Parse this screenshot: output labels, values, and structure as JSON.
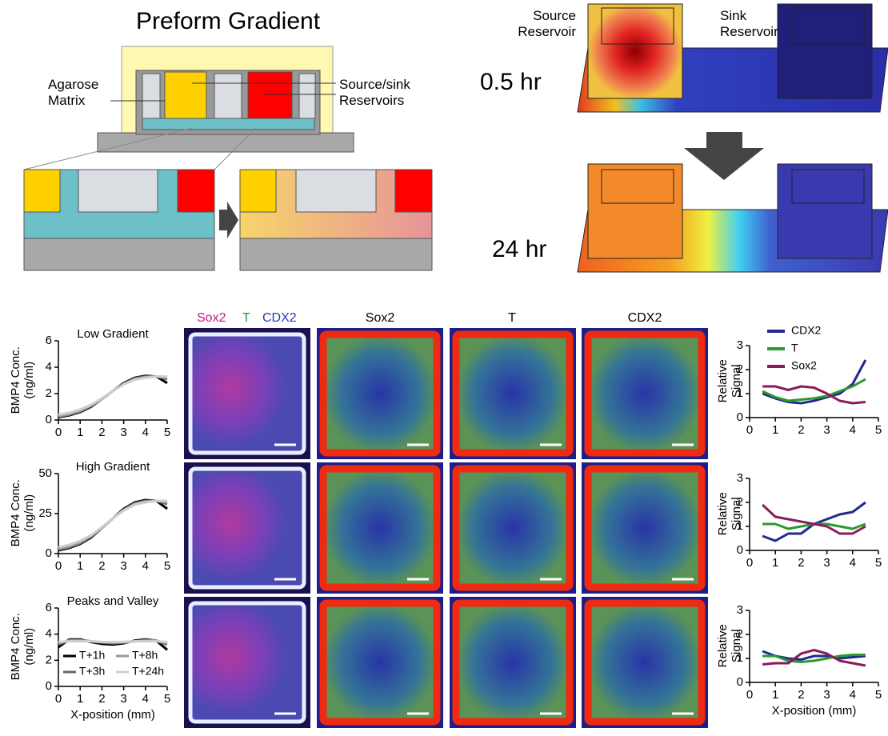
{
  "diagram": {
    "title": "Preform Gradient",
    "agarose_label": [
      "Agarose",
      "Matrix"
    ],
    "reservoir_label": [
      "Source/sink",
      "Reservoirs"
    ],
    "source_label": [
      "Source",
      "Reservoir"
    ],
    "sink_label": [
      "Sink",
      "Reservoir"
    ],
    "time_early": "0.5 hr",
    "time_late": "24 hr"
  },
  "image_panels": {
    "merge_header": [
      {
        "text": "Sox2",
        "color": "#c2188f"
      },
      {
        "text": "T",
        "color": "#1a9a3a"
      },
      {
        "text": "CDX2",
        "color": "#2b3aa8"
      }
    ],
    "channel_headers": [
      "Sox2",
      "T",
      "CDX2"
    ]
  },
  "chart_data": [
    {
      "type": "line",
      "title": "Low Gradient",
      "y_label": "BMP4 Conc. (ng/ml)",
      "x": [
        0,
        0.5,
        1,
        1.5,
        2,
        2.5,
        3,
        3.5,
        4,
        4.5,
        5
      ],
      "series": [
        {
          "name": "T+1h",
          "color": "#000000",
          "values": [
            0.2,
            0.35,
            0.6,
            1.0,
            1.6,
            2.2,
            2.8,
            3.2,
            3.35,
            3.3,
            2.8
          ]
        },
        {
          "name": "T+3h",
          "color": "#666666",
          "values": [
            0.25,
            0.4,
            0.65,
            1.05,
            1.6,
            2.2,
            2.75,
            3.15,
            3.3,
            3.3,
            3.1
          ]
        },
        {
          "name": "T+8h",
          "color": "#9a9a9a",
          "values": [
            0.3,
            0.45,
            0.7,
            1.1,
            1.6,
            2.2,
            2.7,
            3.1,
            3.25,
            3.3,
            3.2
          ]
        },
        {
          "name": "T+24h",
          "color": "#cfcfcf",
          "values": [
            0.4,
            0.55,
            0.8,
            1.15,
            1.65,
            2.2,
            2.7,
            3.05,
            3.2,
            3.3,
            3.3
          ]
        }
      ],
      "xlim": [
        0,
        5
      ],
      "ylim": [
        0,
        6
      ],
      "xticks": [
        0,
        1,
        2,
        3,
        4,
        5
      ],
      "yticks": [
        0,
        2,
        4,
        6
      ]
    },
    {
      "type": "line",
      "title": "High Gradient",
      "y_label": "BMP4 Conc. (ng/ml)",
      "x": [
        0,
        0.5,
        1,
        1.5,
        2,
        2.5,
        3,
        3.5,
        4,
        4.5,
        5
      ],
      "series": [
        {
          "name": "T+1h",
          "color": "#000000",
          "values": [
            2,
            3.5,
            6,
            10,
            16,
            22,
            28,
            32,
            33.5,
            33,
            28
          ]
        },
        {
          "name": "T+3h",
          "color": "#666666",
          "values": [
            2.5,
            4,
            6.5,
            10.5,
            16,
            22,
            27.5,
            31.5,
            33,
            33,
            31
          ]
        },
        {
          "name": "T+8h",
          "color": "#9a9a9a",
          "values": [
            3,
            4.5,
            7,
            11,
            16,
            22,
            27,
            31,
            32.5,
            33,
            32
          ]
        },
        {
          "name": "T+24h",
          "color": "#cfcfcf",
          "values": [
            4,
            5.5,
            8,
            11.5,
            16.5,
            22,
            27,
            30.5,
            32,
            33,
            33
          ]
        }
      ],
      "xlim": [
        0,
        5
      ],
      "ylim": [
        0,
        50
      ],
      "xticks": [
        0,
        1,
        2,
        3,
        4,
        5
      ],
      "yticks": [
        0,
        25,
        50
      ]
    },
    {
      "type": "line",
      "title": "Peaks and Valley",
      "y_label": "BMP4 Conc. (ng/ml)",
      "x_label": "X-position (mm)",
      "x": [
        0,
        0.5,
        1,
        1.5,
        2,
        2.5,
        3,
        3.5,
        4,
        4.5,
        5
      ],
      "series": [
        {
          "name": "T+1h",
          "color": "#000000",
          "values": [
            3.0,
            3.6,
            3.6,
            3.4,
            3.25,
            3.2,
            3.3,
            3.5,
            3.6,
            3.5,
            2.8
          ]
        },
        {
          "name": "T+3h",
          "color": "#666666",
          "values": [
            3.2,
            3.55,
            3.55,
            3.45,
            3.35,
            3.3,
            3.35,
            3.45,
            3.55,
            3.5,
            3.2
          ]
        },
        {
          "name": "T+8h",
          "color": "#9a9a9a",
          "values": [
            3.3,
            3.5,
            3.5,
            3.45,
            3.4,
            3.35,
            3.4,
            3.45,
            3.5,
            3.5,
            3.3
          ]
        },
        {
          "name": "T+24h",
          "color": "#cfcfcf",
          "values": [
            3.4,
            3.45,
            3.45,
            3.45,
            3.4,
            3.4,
            3.4,
            3.45,
            3.45,
            3.45,
            3.4
          ]
        }
      ],
      "xlim": [
        0,
        5
      ],
      "ylim": [
        0,
        6
      ],
      "xticks": [
        0,
        1,
        2,
        3,
        4,
        5
      ],
      "yticks": [
        0,
        2,
        4,
        6
      ],
      "legend": "lower left"
    },
    {
      "type": "line",
      "y_label": "Relative Signal",
      "x": [
        0.5,
        1,
        1.5,
        2,
        2.5,
        3,
        3.5,
        4,
        4.5
      ],
      "series": [
        {
          "name": "CDX2",
          "color": "#1f2a8c",
          "values": [
            1.0,
            0.8,
            0.65,
            0.6,
            0.7,
            0.85,
            1.0,
            1.4,
            2.4
          ]
        },
        {
          "name": "T",
          "color": "#2a9a2a",
          "values": [
            1.1,
            0.85,
            0.7,
            0.75,
            0.8,
            0.9,
            1.1,
            1.3,
            1.6
          ]
        },
        {
          "name": "Sox2",
          "color": "#8b1a5a",
          "values": [
            1.3,
            1.3,
            1.15,
            1.3,
            1.25,
            1.0,
            0.7,
            0.6,
            0.65
          ]
        }
      ],
      "xlim": [
        0,
        5
      ],
      "ylim": [
        0,
        3
      ],
      "xticks": [
        0,
        1,
        2,
        3,
        4,
        5
      ],
      "yticks": [
        0,
        1,
        2,
        3
      ],
      "legend": "upper left"
    },
    {
      "type": "line",
      "y_label": "Relative Signal",
      "x": [
        0.5,
        1,
        1.5,
        2,
        2.5,
        3,
        3.5,
        4,
        4.5
      ],
      "series": [
        {
          "name": "CDX2",
          "color": "#1f2a8c",
          "values": [
            0.6,
            0.4,
            0.7,
            0.7,
            1.1,
            1.3,
            1.5,
            1.6,
            2.0
          ]
        },
        {
          "name": "T",
          "color": "#2a9a2a",
          "values": [
            1.1,
            1.1,
            0.9,
            1.0,
            1.1,
            1.1,
            1.0,
            0.9,
            1.1
          ]
        },
        {
          "name": "Sox2",
          "color": "#8b1a5a",
          "values": [
            1.9,
            1.4,
            1.3,
            1.2,
            1.1,
            1.0,
            0.7,
            0.7,
            1.0
          ]
        }
      ],
      "xlim": [
        0,
        5
      ],
      "ylim": [
        0,
        3
      ],
      "xticks": [
        0,
        1,
        2,
        3,
        4,
        5
      ],
      "yticks": [
        0,
        1,
        2,
        3
      ]
    },
    {
      "type": "line",
      "y_label": "Relative Signal",
      "x_label": "X-position (mm)",
      "x": [
        0.5,
        1,
        1.5,
        2,
        2.5,
        3,
        3.5,
        4,
        4.5
      ],
      "series": [
        {
          "name": "CDX2",
          "color": "#1f2a8c",
          "values": [
            1.3,
            1.1,
            1.0,
            0.95,
            1.1,
            1.1,
            1.0,
            1.05,
            1.1
          ]
        },
        {
          "name": "T",
          "color": "#2a9a2a",
          "values": [
            1.1,
            1.1,
            0.9,
            0.85,
            0.9,
            1.0,
            1.1,
            1.15,
            1.15
          ]
        },
        {
          "name": "Sox2",
          "color": "#8b1a5a",
          "values": [
            0.75,
            0.8,
            0.8,
            1.2,
            1.35,
            1.2,
            0.9,
            0.8,
            0.7
          ]
        }
      ],
      "xlim": [
        0,
        5
      ],
      "ylim": [
        0,
        3
      ],
      "xticks": [
        0,
        1,
        2,
        3,
        4,
        5
      ],
      "yticks": [
        0,
        1,
        2,
        3
      ]
    }
  ]
}
